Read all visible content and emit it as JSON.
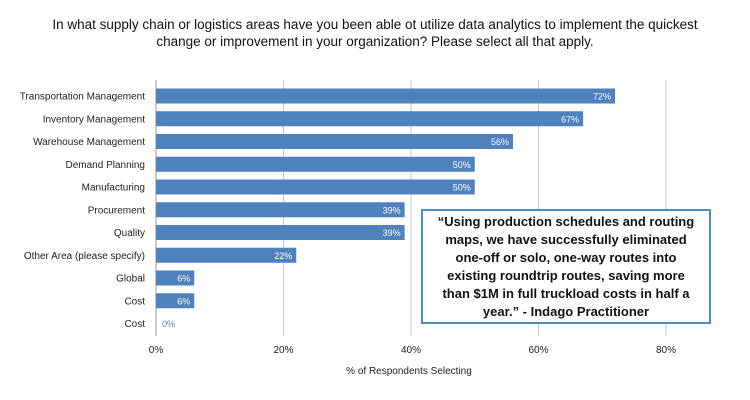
{
  "chart_data": {
    "type": "bar",
    "orientation": "horizontal",
    "title": "In what supply chain or logistics areas have you been able ot utilize data analytics to implement the quickest change or improvement in your organization? Please select all that apply.",
    "xlabel": "% of Respondents Selecting",
    "ylabel": "",
    "xlim": [
      0,
      85
    ],
    "x_ticks": [
      0,
      20,
      40,
      60,
      80
    ],
    "x_tick_labels": [
      "0%",
      "20%",
      "40%",
      "60%",
      "80%"
    ],
    "grid": "vertical gridlines",
    "categories": [
      "Transportation Management",
      "Inventory Management",
      "Warehouse Management",
      "Demand Planning",
      "Manufacturing",
      "Procurement",
      "Quality",
      "Other Area (please specify)",
      "Global",
      "Cost",
      "Cost"
    ],
    "values": [
      72,
      67,
      56,
      50,
      50,
      39,
      39,
      22,
      6,
      6,
      0
    ],
    "data_labels": [
      "72%",
      "67%",
      "56%",
      "50%",
      "50%",
      "39%",
      "39%",
      "22%",
      "6%",
      "6%",
      "0%"
    ],
    "bar_color": "#4f81bd",
    "zero_label_color": "#4f81bd"
  },
  "callout": {
    "text": "“Using production schedules and routing maps, we have successfully eliminated one-off or solo, one-way routes into existing roundtrip routes, saving more than $1M in full truckload costs in half a year.” - Indago Practitioner",
    "border_color": "#4a90c2"
  }
}
